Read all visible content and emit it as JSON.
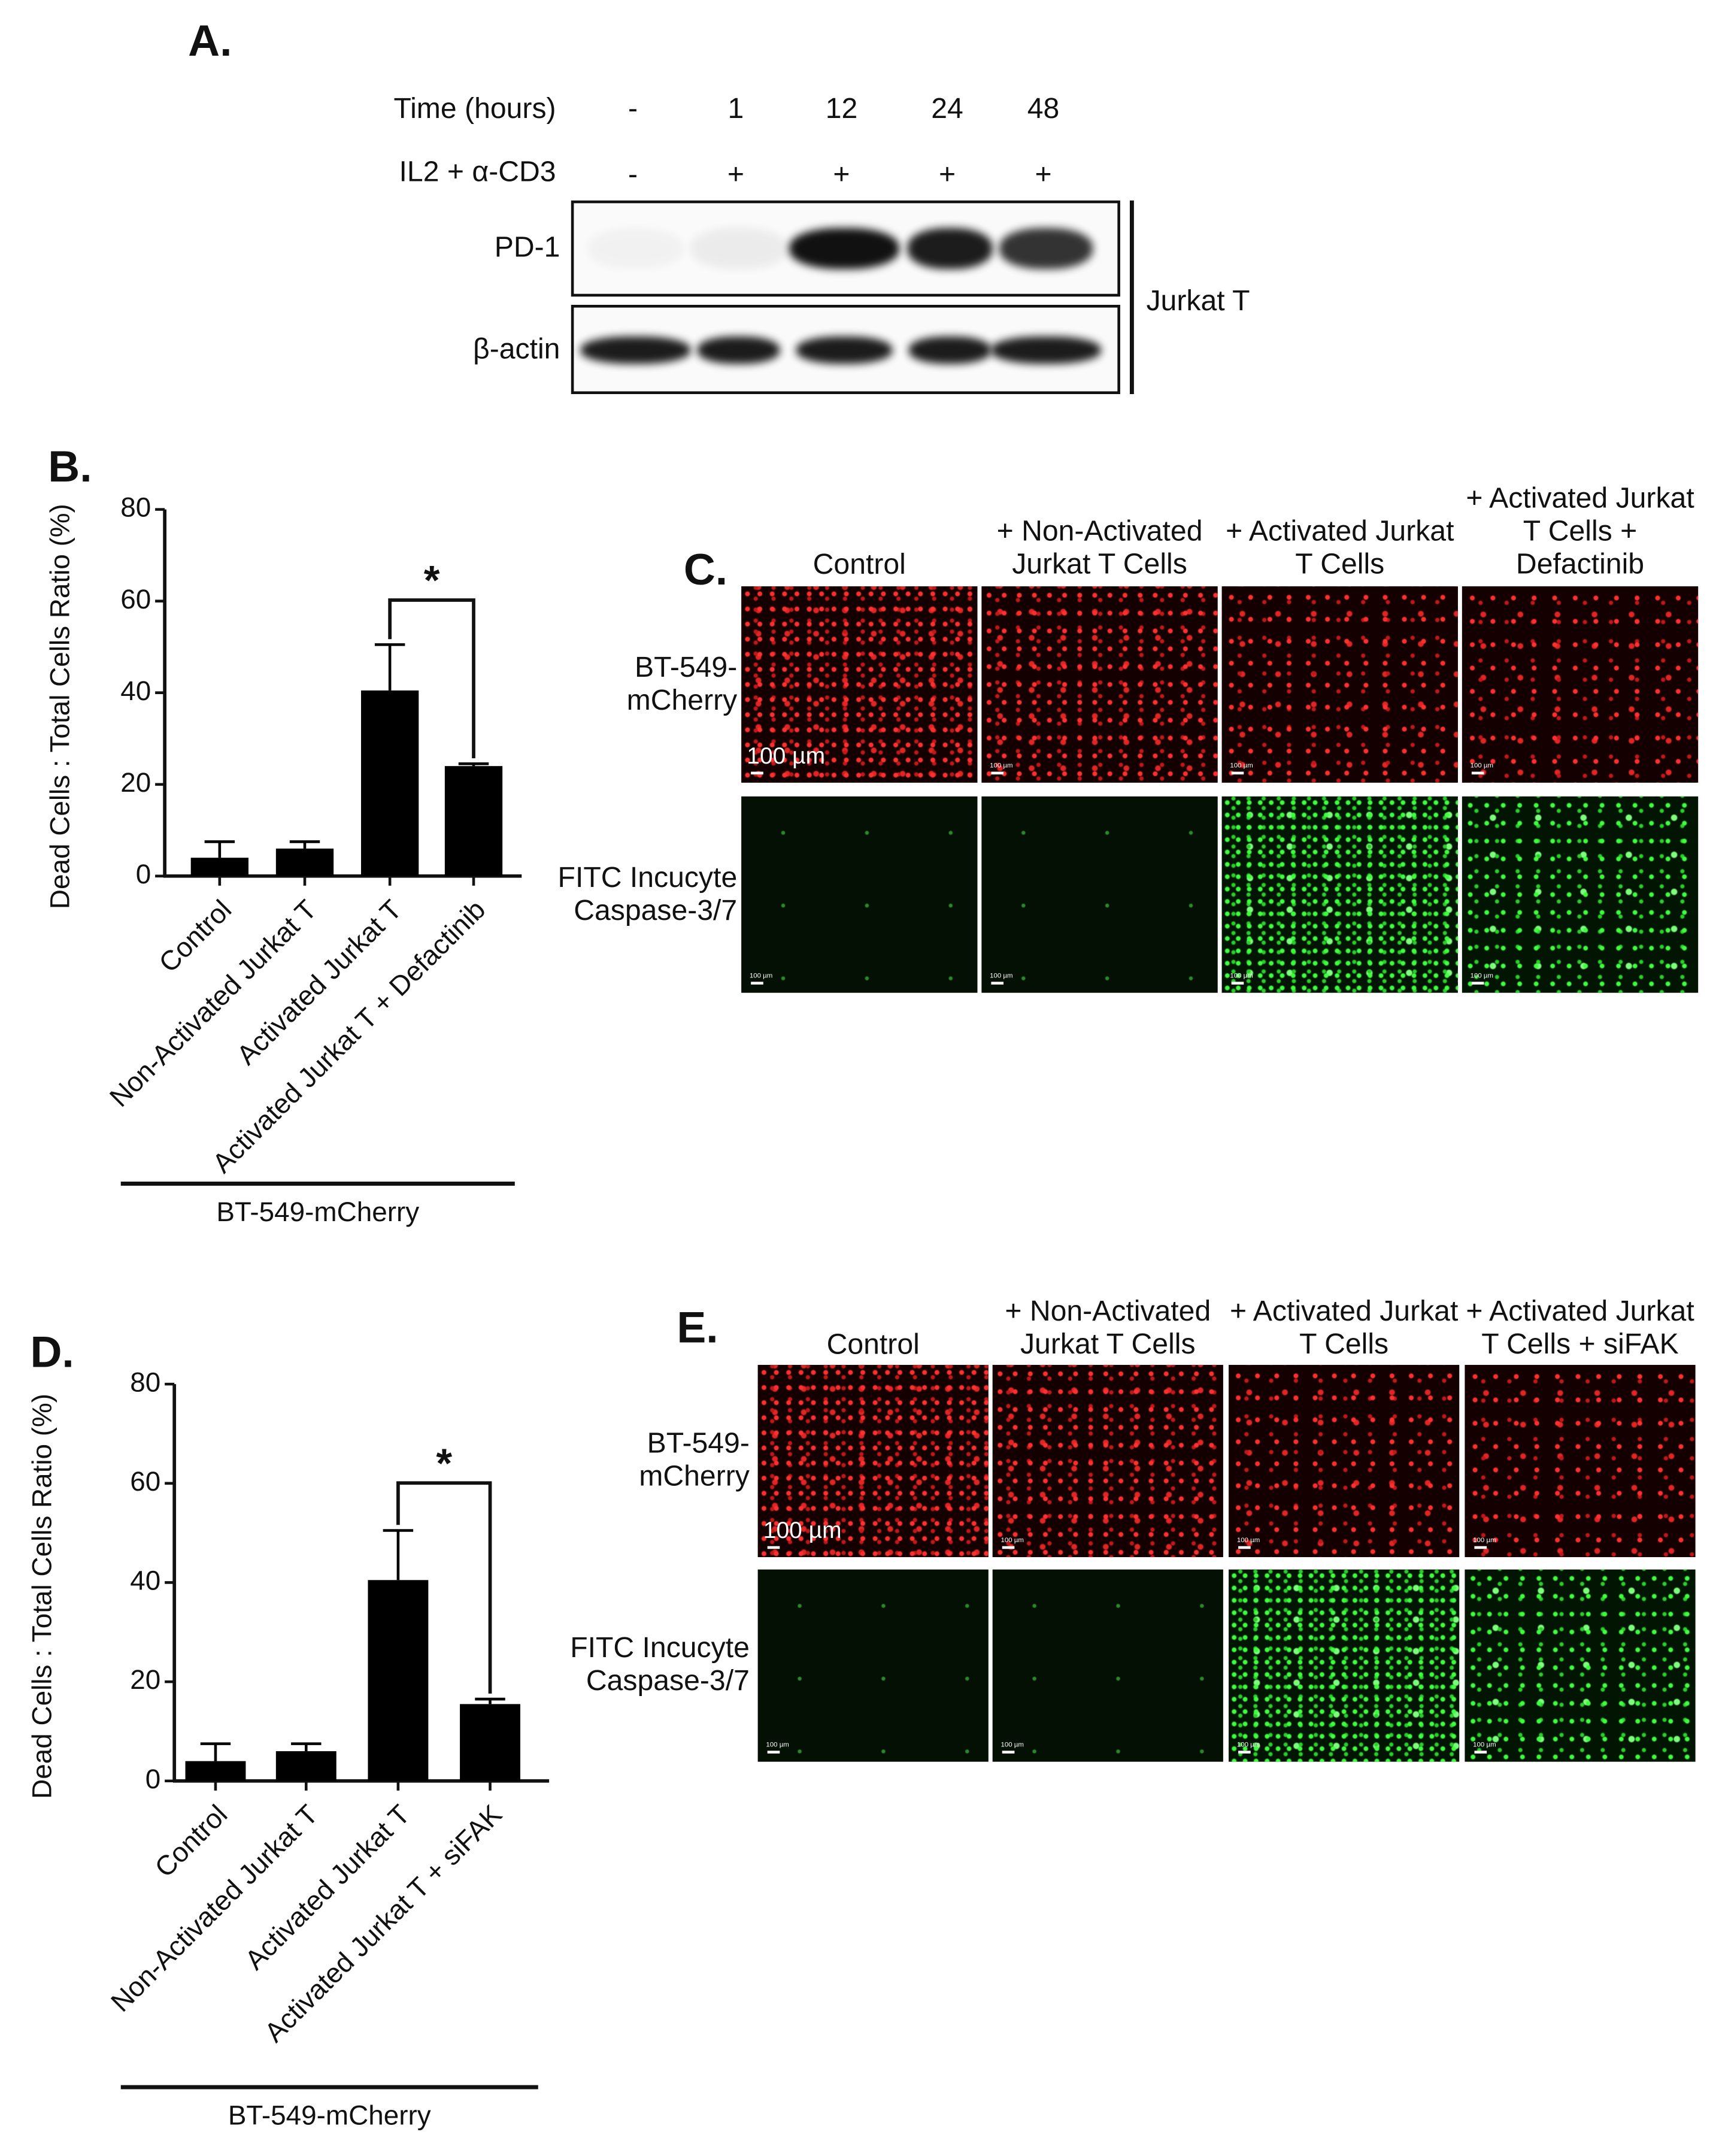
{
  "panel_a": {
    "label": "A.",
    "row_labels": [
      "Time (hours)",
      "IL2 + α-CD3"
    ],
    "time": [
      "-",
      "1",
      "12",
      "24",
      "48"
    ],
    "treatment": [
      "-",
      "+",
      "+",
      "+",
      "+"
    ],
    "blots": [
      "PD-1",
      "β-actin"
    ],
    "cell_line": "Jurkat T"
  },
  "chart_data": [
    {
      "type": "bar",
      "label": "B.",
      "ylabel": "Dead Cells : Total Cells Ratio (%)",
      "categories": [
        "Control",
        "Non-Activated Jurkat T",
        "Activated Jurkat T",
        "Activated Jurkat T + Defactinib"
      ],
      "values": [
        4,
        6,
        40.5,
        24
      ],
      "errors": [
        3.5,
        1.5,
        10,
        0.5
      ],
      "color": "#000000",
      "ylim": [
        0,
        80
      ],
      "yticks": [
        0,
        20,
        40,
        60,
        80
      ],
      "significance": "*",
      "group_label": "BT-549-mCherry"
    },
    {
      "type": "bar",
      "label": "D.",
      "ylabel": "Dead Cells : Total Cells Ratio (%)",
      "categories": [
        "Control",
        "Non-Activated Jurkat T",
        "Activated Jurkat T",
        "Activated Jurkat T + siFAK"
      ],
      "values": [
        4,
        6,
        40.5,
        15.5
      ],
      "errors": [
        3.5,
        1.5,
        10,
        1
      ],
      "color": "#000000",
      "ylim": [
        0,
        80
      ],
      "yticks": [
        0,
        20,
        40,
        60,
        80
      ],
      "significance": "*",
      "group_label": "BT-549-mCherry"
    }
  ],
  "panel_c": {
    "label": "C.",
    "columns": [
      "Control",
      "+ Non-Activated Jurkat T Cells",
      "+ Activated Jurkat T Cells",
      "+ Activated Jurkat T Cells + Defactinib"
    ],
    "rows": [
      "BT-549-mCherry",
      "FITC Incucyte Caspase-3/7"
    ],
    "scale_bar": "100 µm"
  },
  "panel_e": {
    "label": "E.",
    "columns": [
      "Control",
      "+ Non-Activated Jurkat T Cells",
      "+ Activated Jurkat T Cells",
      "+ Activated Jurkat T Cells + siFAK"
    ],
    "rows": [
      "BT-549-mCherry",
      "FITC Incucyte Caspase-3/7"
    ],
    "scale_bar": "100 µm"
  }
}
